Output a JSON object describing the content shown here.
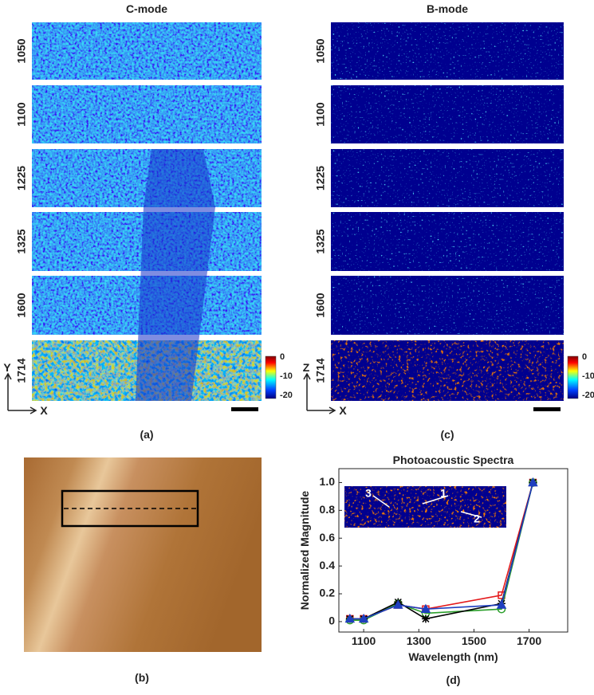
{
  "panel_a": {
    "title": "C-mode",
    "rows": [
      "1050",
      "1100",
      "1225",
      "1325",
      "1600",
      "1714"
    ],
    "axis_y": "Y",
    "axis_x": "X",
    "colorbar_ticks": [
      "0",
      "-10",
      "-20"
    ],
    "caption": "(a)"
  },
  "panel_c": {
    "title": "B-mode",
    "rows": [
      "1050",
      "1100",
      "1225",
      "1325",
      "1600",
      "1714"
    ],
    "axis_y": "Z",
    "axis_x": "X",
    "colorbar_ticks": [
      "0",
      "-10",
      "-20"
    ],
    "caption": "(c)"
  },
  "panel_b": {
    "caption": "(b)"
  },
  "chart_data": {
    "type": "line",
    "title": "Photoacoustic Spectra",
    "x_label": "Wavelength (nm)",
    "y_label": "Normalized Magnitude",
    "caption": "(d)",
    "x": [
      1050,
      1100,
      1225,
      1325,
      1600,
      1714
    ],
    "series": [
      {
        "color": "#e41a1c",
        "marker": "square",
        "values": [
          0.02,
          0.02,
          0.12,
          0.09,
          0.19,
          1.0
        ]
      },
      {
        "color": "#2ca02c",
        "marker": "circle",
        "values": [
          0.01,
          0.01,
          0.13,
          0.06,
          0.09,
          1.0
        ]
      },
      {
        "color": "#000000",
        "marker": "asterisk",
        "values": [
          0.02,
          0.02,
          0.14,
          0.02,
          0.13,
          1.0
        ]
      },
      {
        "color": "#1f3fbf",
        "marker": "triangle",
        "values": [
          0.02,
          0.02,
          0.12,
          0.09,
          0.12,
          1.0
        ]
      }
    ],
    "xlim": [
      1010,
      1840
    ],
    "ylim": [
      -0.075,
      1.1
    ],
    "xticks": [
      1100,
      1300,
      1500,
      1700
    ],
    "yticks": [
      0,
      0.2,
      0.4,
      0.6,
      0.8,
      {
        "value": 1,
        "label": "1.0"
      }
    ],
    "inset_labels": [
      "3",
      "1",
      "2"
    ]
  }
}
